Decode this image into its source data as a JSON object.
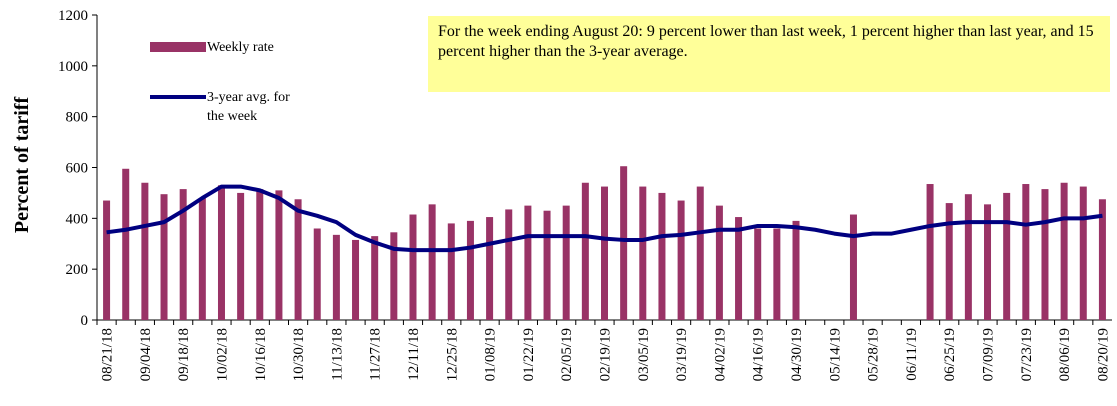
{
  "chart_data": {
    "type": "bar_line",
    "y_label": "Percent of tariff",
    "annotation": "For the week ending August 20: 9 percent lower than last week, 1 percent higher than last year, and 15 percent higher than the 3-year average.",
    "categories": [
      "08/21/18",
      null,
      "09/04/18",
      null,
      "09/18/18",
      null,
      "10/02/18",
      null,
      "10/16/18",
      null,
      "10/30/18",
      null,
      "11/13/18",
      null,
      "11/27/18",
      null,
      "12/11/18",
      null,
      "12/25/18",
      null,
      "01/08/19",
      null,
      "01/22/19",
      null,
      "02/05/19",
      null,
      "02/19/19",
      null,
      "03/05/19",
      null,
      "03/19/19",
      null,
      "04/02/19",
      null,
      "04/16/19",
      null,
      "04/30/19",
      null,
      "05/14/19",
      null,
      "05/28/19",
      null,
      "06/11/19",
      null,
      "06/25/19",
      null,
      "07/09/19",
      null,
      "07/23/19",
      null,
      "08/06/19",
      null,
      "08/20/19"
    ],
    "series": [
      {
        "name": "Weekly rate",
        "type": "bar",
        "color": "#993366",
        "values": [
          470,
          595,
          540,
          495,
          515,
          480,
          530,
          500,
          515,
          510,
          475,
          360,
          335,
          315,
          330,
          345,
          415,
          455,
          380,
          390,
          405,
          435,
          450,
          430,
          450,
          540,
          525,
          605,
          525,
          500,
          470,
          525,
          450,
          405,
          360,
          360,
          390,
          null,
          null,
          415,
          null,
          null,
          null,
          535,
          460,
          495,
          455,
          500,
          535,
          515,
          540,
          525,
          475
        ]
      },
      {
        "name": "3-year avg. for the week",
        "type": "line",
        "color": "#000080",
        "values": [
          345,
          355,
          370,
          385,
          430,
          480,
          525,
          525,
          510,
          480,
          430,
          410,
          385,
          335,
          305,
          280,
          275,
          275,
          275,
          285,
          300,
          315,
          330,
          330,
          330,
          330,
          320,
          315,
          315,
          330,
          335,
          345,
          355,
          355,
          370,
          370,
          365,
          355,
          340,
          330,
          340,
          340,
          355,
          370,
          380,
          385,
          385,
          385,
          375,
          385,
          400,
          400,
          410
        ]
      }
    ],
    "ylim": [
      0,
      1200
    ],
    "yticks": [
      0,
      200,
      400,
      600,
      800,
      1000,
      1200
    ]
  }
}
